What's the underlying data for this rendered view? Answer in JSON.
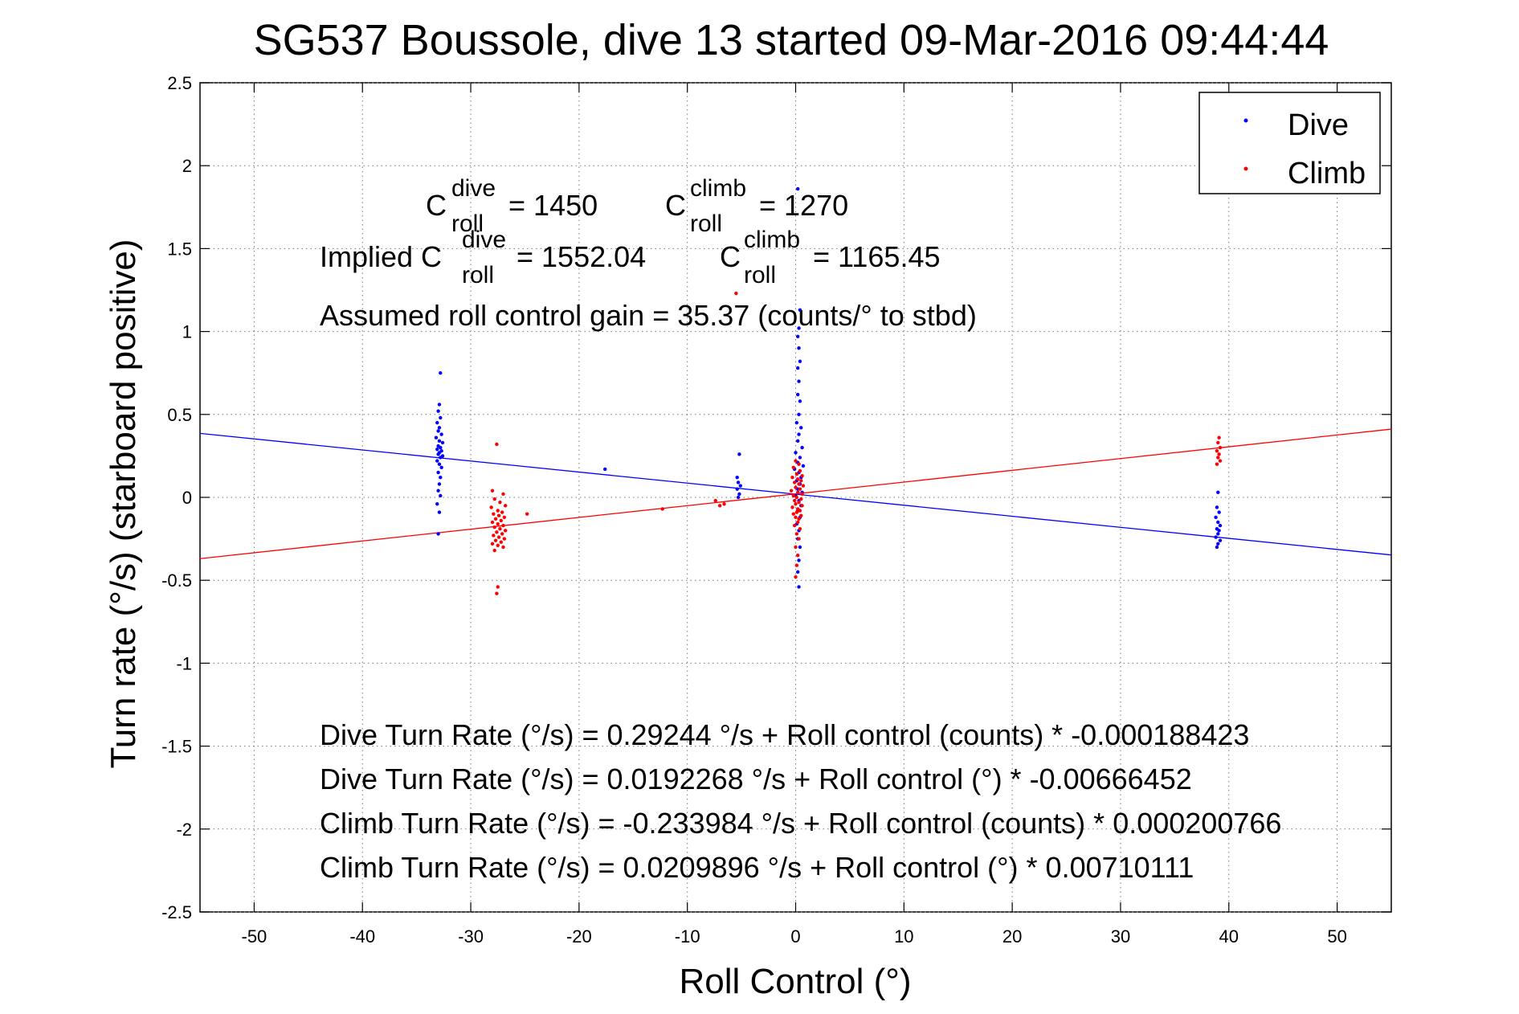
{
  "chart_data": {
    "type": "scatter",
    "title": "SG537 Boussole, dive 13 started 09-Mar-2016 09:44:44",
    "xlabel": "Roll Control (°)",
    "ylabel": "Turn rate (°/s)  (starboard positive)",
    "xlim": [
      -55,
      55
    ],
    "ylim": [
      -2.5,
      2.5
    ],
    "xticks": [
      "-50",
      "-40",
      "-30",
      "-20",
      "-10",
      "0",
      "10",
      "20",
      "30",
      "40",
      "50"
    ],
    "xtick_values": [
      -50,
      -40,
      -30,
      -20,
      -10,
      0,
      10,
      20,
      30,
      40,
      50
    ],
    "yticks": [
      "2.5",
      "2",
      "1.5",
      "1",
      "0.5",
      "0",
      "-0.5",
      "-1",
      "-1.5",
      "-2",
      "-2.5"
    ],
    "ytick_values": [
      2.5,
      2,
      1.5,
      1,
      0.5,
      0,
      -0.5,
      -1,
      -1.5,
      -2,
      -2.5
    ],
    "grid": true,
    "legend_position": "top-right",
    "series": [
      {
        "name": "Dive",
        "color": "#0000ff",
        "points": [
          [
            -32.8,
            0.75
          ],
          [
            -32.9,
            0.56
          ],
          [
            -33.0,
            0.52
          ],
          [
            -32.8,
            0.48
          ],
          [
            -33.1,
            0.45
          ],
          [
            -32.9,
            0.42
          ],
          [
            -33.0,
            0.4
          ],
          [
            -32.7,
            0.38
          ],
          [
            -33.2,
            0.36
          ],
          [
            -32.9,
            0.34
          ],
          [
            -32.6,
            0.33
          ],
          [
            -33.0,
            0.31
          ],
          [
            -32.8,
            0.3
          ],
          [
            -33.1,
            0.29
          ],
          [
            -32.7,
            0.28
          ],
          [
            -32.9,
            0.27
          ],
          [
            -33.0,
            0.26
          ],
          [
            -32.6,
            0.25
          ],
          [
            -32.8,
            0.24
          ],
          [
            -33.1,
            0.22
          ],
          [
            -32.9,
            0.2
          ],
          [
            -32.7,
            0.18
          ],
          [
            -33.0,
            0.15
          ],
          [
            -32.8,
            0.12
          ],
          [
            -32.9,
            0.08
          ],
          [
            -33.0,
            0.04
          ],
          [
            -32.8,
            0.01
          ],
          [
            -33.1,
            -0.04
          ],
          [
            -32.9,
            -0.09
          ],
          [
            -33.0,
            -0.22
          ],
          [
            -17.6,
            0.17
          ],
          [
            -5.2,
            0.26
          ],
          [
            -5.4,
            0.12
          ],
          [
            -5.3,
            0.09
          ],
          [
            -5.1,
            0.07
          ],
          [
            -5.4,
            0.05
          ],
          [
            -5.2,
            0.02
          ],
          [
            -5.3,
            0.0
          ],
          [
            0.2,
            1.86
          ],
          [
            0.4,
            1.13
          ],
          [
            0.3,
            1.02
          ],
          [
            0.2,
            0.97
          ],
          [
            0.3,
            0.9
          ],
          [
            0.4,
            0.82
          ],
          [
            0.2,
            0.78
          ],
          [
            0.3,
            0.7
          ],
          [
            0.2,
            0.62
          ],
          [
            0.4,
            0.58
          ],
          [
            0.3,
            0.5
          ],
          [
            0.1,
            0.45
          ],
          [
            0.5,
            0.42
          ],
          [
            0.3,
            0.38
          ],
          [
            0.2,
            0.34
          ],
          [
            0.6,
            0.3
          ],
          [
            0.0,
            0.27
          ],
          [
            0.4,
            0.24
          ],
          [
            0.2,
            0.21
          ],
          [
            0.7,
            0.19
          ],
          [
            -0.1,
            0.17
          ],
          [
            0.3,
            0.15
          ],
          [
            0.5,
            0.12
          ],
          [
            0.1,
            0.1
          ],
          [
            0.4,
            0.08
          ],
          [
            0.2,
            0.05
          ],
          [
            0.6,
            0.03
          ],
          [
            0.0,
            0.01
          ],
          [
            0.3,
            -0.02
          ],
          [
            0.5,
            -0.05
          ],
          [
            0.2,
            -0.08
          ],
          [
            0.4,
            -0.12
          ],
          [
            0.1,
            -0.16
          ],
          [
            0.3,
            -0.2
          ],
          [
            0.2,
            -0.25
          ],
          [
            0.4,
            -0.3
          ],
          [
            0.3,
            -0.38
          ],
          [
            0.2,
            -0.45
          ],
          [
            0.3,
            -0.54
          ],
          [
            39.0,
            0.03
          ],
          [
            38.9,
            -0.06
          ],
          [
            39.1,
            -0.09
          ],
          [
            38.8,
            -0.12
          ],
          [
            39.0,
            -0.15
          ],
          [
            39.2,
            -0.17
          ],
          [
            38.9,
            -0.19
          ],
          [
            39.1,
            -0.2
          ],
          [
            39.0,
            -0.22
          ],
          [
            38.8,
            -0.24
          ],
          [
            39.2,
            -0.26
          ],
          [
            39.0,
            -0.28
          ],
          [
            38.9,
            -0.3
          ]
        ],
        "fit": {
          "intercept": 0.0192268,
          "slope": -0.00666452
        }
      },
      {
        "name": "Climb",
        "color": "#ff0000",
        "points": [
          [
            -27.6,
            0.32
          ],
          [
            -28.0,
            0.04
          ],
          [
            -27.0,
            0.02
          ],
          [
            -27.8,
            -0.01
          ],
          [
            -27.3,
            -0.03
          ],
          [
            -26.8,
            -0.05
          ],
          [
            -28.1,
            -0.06
          ],
          [
            -27.5,
            -0.08
          ],
          [
            -27.1,
            -0.09
          ],
          [
            -27.9,
            -0.1
          ],
          [
            -27.4,
            -0.11
          ],
          [
            -26.9,
            -0.12
          ],
          [
            -27.7,
            -0.13
          ],
          [
            -27.2,
            -0.14
          ],
          [
            -28.0,
            -0.15
          ],
          [
            -27.5,
            -0.16
          ],
          [
            -27.0,
            -0.17
          ],
          [
            -27.8,
            -0.18
          ],
          [
            -27.3,
            -0.19
          ],
          [
            -26.8,
            -0.2
          ],
          [
            -27.6,
            -0.21
          ],
          [
            -27.1,
            -0.22
          ],
          [
            -27.9,
            -0.23
          ],
          [
            -27.4,
            -0.24
          ],
          [
            -26.9,
            -0.25
          ],
          [
            -27.7,
            -0.26
          ],
          [
            -27.2,
            -0.27
          ],
          [
            -28.0,
            -0.28
          ],
          [
            -27.5,
            -0.29
          ],
          [
            -27.0,
            -0.3
          ],
          [
            -27.8,
            -0.32
          ],
          [
            -27.5,
            -0.54
          ],
          [
            -27.6,
            -0.58
          ],
          [
            -24.8,
            -0.1
          ],
          [
            -12.3,
            -0.07
          ],
          [
            -7.4,
            -0.02
          ],
          [
            -7.0,
            -0.05
          ],
          [
            -6.6,
            -0.04
          ],
          [
            0.0,
            0.22
          ],
          [
            0.3,
            0.2
          ],
          [
            -0.2,
            0.18
          ],
          [
            0.4,
            0.16
          ],
          [
            0.1,
            0.14
          ],
          [
            0.6,
            0.13
          ],
          [
            -0.3,
            0.12
          ],
          [
            0.2,
            0.11
          ],
          [
            0.5,
            0.1
          ],
          [
            -0.1,
            0.09
          ],
          [
            0.3,
            0.08
          ],
          [
            0.7,
            0.07
          ],
          [
            0.0,
            0.06
          ],
          [
            0.4,
            0.05
          ],
          [
            -0.4,
            0.04
          ],
          [
            0.2,
            0.03
          ],
          [
            0.6,
            0.02
          ],
          [
            -0.2,
            0.01
          ],
          [
            0.1,
            0.0
          ],
          [
            0.5,
            -0.01
          ],
          [
            -0.1,
            -0.02
          ],
          [
            0.3,
            -0.03
          ],
          [
            0.0,
            -0.04
          ],
          [
            0.6,
            -0.05
          ],
          [
            -0.3,
            -0.06
          ],
          [
            0.2,
            -0.07
          ],
          [
            0.4,
            -0.08
          ],
          [
            0.1,
            -0.09
          ],
          [
            -0.2,
            -0.1
          ],
          [
            0.5,
            -0.11
          ],
          [
            0.0,
            -0.12
          ],
          [
            0.3,
            -0.13
          ],
          [
            0.2,
            -0.15
          ],
          [
            -0.1,
            -0.17
          ],
          [
            0.4,
            -0.19
          ],
          [
            0.1,
            -0.22
          ],
          [
            0.3,
            -0.25
          ],
          [
            0.0,
            -0.3
          ],
          [
            0.2,
            -0.35
          ],
          [
            0.1,
            -0.41
          ],
          [
            0.0,
            -0.48
          ],
          [
            -5.5,
            1.23
          ],
          [
            39.1,
            0.36
          ],
          [
            39.0,
            0.33
          ],
          [
            39.2,
            0.3
          ],
          [
            38.9,
            0.28
          ],
          [
            39.1,
            0.26
          ],
          [
            39.0,
            0.24
          ],
          [
            39.2,
            0.22
          ],
          [
            38.9,
            0.2
          ]
        ],
        "fit": {
          "intercept": 0.0209896,
          "slope": 0.00710111
        }
      }
    ],
    "annotations": {
      "c_dive": {
        "main": "C",
        "sup": "dive",
        "sub": "roll",
        "value": "= 1450"
      },
      "c_climb": {
        "main": "C",
        "sup": "climb",
        "sub": "roll",
        "value": "= 1270"
      },
      "implied_prefix": "Implied C",
      "implied_dive": {
        "sup": "dive",
        "sub": "roll",
        "value": "= 1552.04"
      },
      "implied_climb": {
        "main": "C",
        "sup": "climb",
        "sub": "roll",
        "value": "= 1165.45"
      },
      "gain": "Assumed roll control gain = 35.37 (counts/° to stbd)",
      "eq1": "Dive Turn Rate (°/s) = 0.29244 °/s + Roll control (counts) * -0.000188423",
      "eq2": "Dive Turn Rate (°/s) = 0.0192268 °/s + Roll control (°) * -0.00666452",
      "eq3": "Climb Turn Rate (°/s) = -0.233984 °/s + Roll control (counts) * 0.000200766",
      "eq4": "Climb Turn Rate (°/s) = 0.0209896 °/s + Roll control (°) * 0.00710111"
    }
  }
}
